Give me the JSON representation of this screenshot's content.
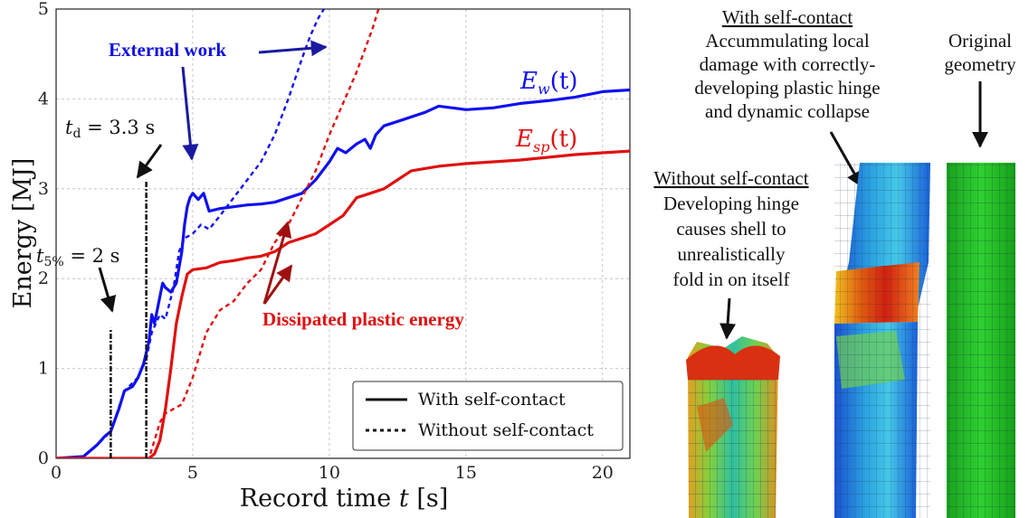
{
  "chart_data": {
    "type": "line",
    "xlabel": "Record time",
    "xlabel_var": "t",
    "xlabel_unit": "[s]",
    "ylabel": "Energy [MJ]",
    "xlim": [
      0,
      21
    ],
    "ylim": [
      0,
      5
    ],
    "x_ticks": [
      "0",
      "5",
      "10",
      "15",
      "20"
    ],
    "y_ticks": [
      "0",
      "1",
      "2",
      "3",
      "4",
      "5"
    ],
    "grid": true,
    "series": [
      {
        "name": "E_w(t)",
        "label_main": "E",
        "label_sub": "w",
        "label_tail": "(t)",
        "contact": "with",
        "color": "#1010f0",
        "style": "solid",
        "x": [
          0,
          1,
          1.5,
          1.8,
          2,
          2.3,
          2.5,
          2.8,
          3,
          3.2,
          3.4,
          3.5,
          3.6,
          3.7,
          3.8,
          3.9,
          4,
          4.2,
          4.4,
          4.6,
          4.7,
          4.8,
          4.9,
          5,
          5.2,
          5.4,
          5.6,
          6,
          6.5,
          7,
          7.5,
          8,
          8.5,
          9,
          9.5,
          10,
          10.3,
          10.6,
          11,
          11.3,
          11.5,
          11.7,
          12,
          12.5,
          13,
          13.5,
          14,
          14.5,
          15,
          16,
          17,
          18,
          19,
          20,
          21
        ],
        "y": [
          0,
          0.02,
          0.15,
          0.25,
          0.3,
          0.55,
          0.75,
          0.8,
          0.9,
          1.05,
          1.3,
          1.6,
          1.5,
          1.65,
          1.8,
          1.95,
          1.9,
          1.85,
          1.95,
          2.3,
          2.6,
          2.8,
          2.9,
          2.95,
          2.88,
          2.95,
          2.75,
          2.78,
          2.8,
          2.82,
          2.83,
          2.85,
          2.9,
          2.95,
          3.1,
          3.3,
          3.45,
          3.4,
          3.5,
          3.55,
          3.45,
          3.6,
          3.7,
          3.75,
          3.8,
          3.85,
          3.92,
          3.9,
          3.88,
          3.9,
          3.95,
          3.98,
          4.02,
          4.08,
          4.1
        ]
      },
      {
        "name": "E_w(t)",
        "contact": "without",
        "color": "#1010f0",
        "style": "dotted",
        "x": [
          0,
          1,
          1.5,
          2,
          2.5,
          3,
          3.3,
          3.5,
          3.8,
          4,
          4.3,
          4.5,
          4.7,
          5,
          5.3,
          5.6,
          6,
          6.5,
          7,
          7.5,
          8,
          8.5,
          9,
          9.3,
          9.6,
          9.8,
          10,
          10.2
        ],
        "y": [
          0,
          0.02,
          0.15,
          0.3,
          0.75,
          0.9,
          1.1,
          1.4,
          1.6,
          1.55,
          1.9,
          2.3,
          2.45,
          2.5,
          2.6,
          2.55,
          2.7,
          2.9,
          3.1,
          3.3,
          3.6,
          4.0,
          4.45,
          4.7,
          4.9,
          5.0,
          5.1,
          5.3
        ]
      },
      {
        "name": "E_sp(t)",
        "label_main": "E",
        "label_sub": "sp",
        "label_tail": "(t)",
        "contact": "with",
        "color": "#e01010",
        "style": "solid",
        "x": [
          0,
          3.4,
          3.6,
          3.8,
          4,
          4.2,
          4.4,
          4.6,
          4.8,
          5,
          5.5,
          6,
          6.5,
          7,
          7.5,
          8,
          8.5,
          9,
          9.5,
          10,
          10.5,
          11,
          11.5,
          12,
          12.5,
          13,
          14,
          15,
          16,
          17,
          18,
          19,
          20,
          21
        ],
        "y": [
          0,
          0,
          0.05,
          0.2,
          0.55,
          1.0,
          1.5,
          1.8,
          2.05,
          2.1,
          2.12,
          2.18,
          2.2,
          2.23,
          2.25,
          2.3,
          2.4,
          2.45,
          2.5,
          2.6,
          2.7,
          2.9,
          2.95,
          3.0,
          3.1,
          3.2,
          3.25,
          3.28,
          3.3,
          3.32,
          3.35,
          3.38,
          3.4,
          3.42
        ]
      },
      {
        "name": "E_sp(t)",
        "contact": "without",
        "color": "#e01010",
        "style": "dotted",
        "x": [
          0,
          3.4,
          3.6,
          3.8,
          4,
          4.3,
          4.6,
          5,
          5.5,
          6,
          6.5,
          7,
          7.5,
          8,
          8.5,
          9,
          9.5,
          10,
          10.5,
          11,
          11.3,
          11.6,
          11.8,
          12
        ],
        "y": [
          0,
          0,
          0.2,
          0.4,
          0.5,
          0.55,
          0.6,
          0.9,
          1.4,
          1.65,
          1.75,
          1.95,
          2.1,
          2.4,
          2.6,
          2.9,
          3.2,
          3.6,
          3.95,
          4.3,
          4.55,
          4.8,
          5.0,
          5.2
        ]
      }
    ],
    "markers": [
      {
        "label_pre": "t",
        "label_sub": "5%",
        "label_post": " = 2 s",
        "x": 2.0,
        "height": 1.45
      },
      {
        "label_pre": "t",
        "label_sub": "d",
        "label_post": " = 3.3 s",
        "x": 3.3,
        "height": 3.1
      }
    ],
    "annotations": {
      "external_work": "External work",
      "dissipated": "Dissipated plastic energy"
    },
    "legend": {
      "position": "bottom-right",
      "entries": [
        {
          "label": "With self-contact",
          "style": "solid"
        },
        {
          "label": "Without self-contact",
          "style": "dotted"
        }
      ]
    }
  },
  "figure": {
    "with_contact": {
      "heading": "With self-contact",
      "lines": [
        "Accummulating local",
        "damage with correctly-",
        "developing plastic hinge",
        "and dynamic collapse"
      ]
    },
    "without_contact": {
      "heading": "Without self-contact",
      "lines": [
        "Developing hinge",
        "causes shell to",
        "unrealistically",
        "fold in on itself"
      ]
    },
    "original": {
      "lines": [
        "Original",
        "geometry"
      ]
    }
  }
}
